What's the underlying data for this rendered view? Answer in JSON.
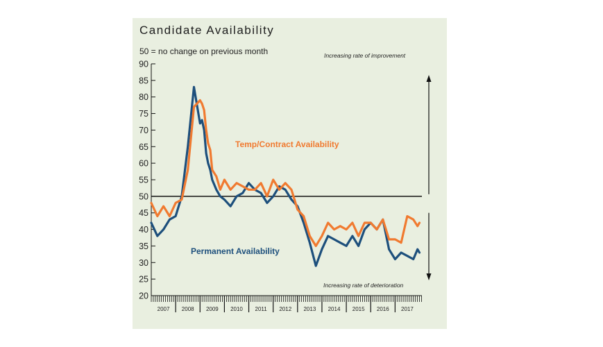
{
  "colors": {
    "panel_bg": "#e9efe0",
    "permanent": "#1d4f7c",
    "temp": "#f07a30",
    "axis": "#111111"
  },
  "header": {
    "title": "Candidate Availability",
    "subtitle": "50 = no change on previous month",
    "note_up": "Increasing rate of improvement",
    "note_down": "Increasing rate of deterioration"
  },
  "chart_data": {
    "type": "line",
    "title": "Candidate Availability",
    "subtitle": "50 = no change on previous month",
    "x_range": [
      2007.0,
      2018.1
    ],
    "ylim": [
      20,
      90
    ],
    "y_ticks": [
      20,
      25,
      30,
      35,
      40,
      45,
      50,
      55,
      60,
      65,
      70,
      75,
      80,
      85,
      90
    ],
    "x_tick_labels": [
      "2007",
      "2008",
      "2009",
      "2010",
      "2011",
      "2012",
      "2013",
      "2014",
      "2015",
      "2016",
      "2017"
    ],
    "reference_line": 50,
    "series": [
      {
        "name": "Temp/Contract Availability",
        "color": "#f07a30",
        "x": [
          2007.0,
          2007.25,
          2007.5,
          2007.75,
          2008.0,
          2008.25,
          2008.5,
          2008.75,
          2009.0,
          2009.08,
          2009.17,
          2009.25,
          2009.33,
          2009.42,
          2009.5,
          2009.67,
          2009.83,
          2010.0,
          2010.25,
          2010.5,
          2010.75,
          2011.0,
          2011.25,
          2011.5,
          2011.75,
          2012.0,
          2012.25,
          2012.5,
          2012.75,
          2013.0,
          2013.25,
          2013.5,
          2013.75,
          2014.0,
          2014.25,
          2014.5,
          2014.75,
          2015.0,
          2015.25,
          2015.5,
          2015.75,
          2016.0,
          2016.25,
          2016.5,
          2016.75,
          2017.0,
          2017.25,
          2017.5,
          2017.75,
          2017.92,
          2018.0
        ],
        "values": [
          48,
          44,
          47,
          44,
          48,
          49,
          58,
          77,
          79,
          78,
          76,
          70,
          66,
          64,
          58,
          56,
          52,
          55,
          52,
          54,
          53,
          52,
          52,
          54,
          50,
          55,
          52,
          54,
          52,
          46,
          44,
          38,
          35,
          38,
          42,
          40,
          41,
          40,
          42,
          38,
          42,
          42,
          40,
          43,
          37,
          37,
          36,
          44,
          43,
          41,
          42
        ]
      },
      {
        "name": "Permanent Availability",
        "color": "#1d4f7c",
        "x": [
          2007.0,
          2007.25,
          2007.5,
          2007.75,
          2008.0,
          2008.25,
          2008.5,
          2008.75,
          2009.0,
          2009.08,
          2009.17,
          2009.25,
          2009.33,
          2009.42,
          2009.5,
          2009.67,
          2009.83,
          2010.0,
          2010.25,
          2010.5,
          2010.75,
          2011.0,
          2011.25,
          2011.5,
          2011.75,
          2012.0,
          2012.25,
          2012.5,
          2012.75,
          2013.0,
          2013.25,
          2013.5,
          2013.75,
          2014.0,
          2014.25,
          2014.5,
          2014.75,
          2015.0,
          2015.25,
          2015.5,
          2015.75,
          2016.0,
          2016.25,
          2016.5,
          2016.75,
          2017.0,
          2017.25,
          2017.5,
          2017.75,
          2017.92,
          2018.0
        ],
        "values": [
          42,
          38,
          40,
          43,
          44,
          50,
          65,
          83,
          72,
          73,
          70,
          63,
          60,
          58,
          55,
          52,
          50,
          49,
          47,
          50,
          51,
          54,
          52,
          51,
          48,
          50,
          53,
          52,
          49,
          47,
          42,
          36,
          29,
          34,
          38,
          37,
          36,
          35,
          38,
          35,
          40,
          42,
          40,
          43,
          34,
          31,
          33,
          32,
          31,
          34,
          33
        ]
      }
    ],
    "series_labels": [
      "Temp/Contract Availability",
      "Permanent Availability"
    ],
    "annotations": [
      "Increasing rate of improvement",
      "Increasing rate of deterioration"
    ]
  }
}
